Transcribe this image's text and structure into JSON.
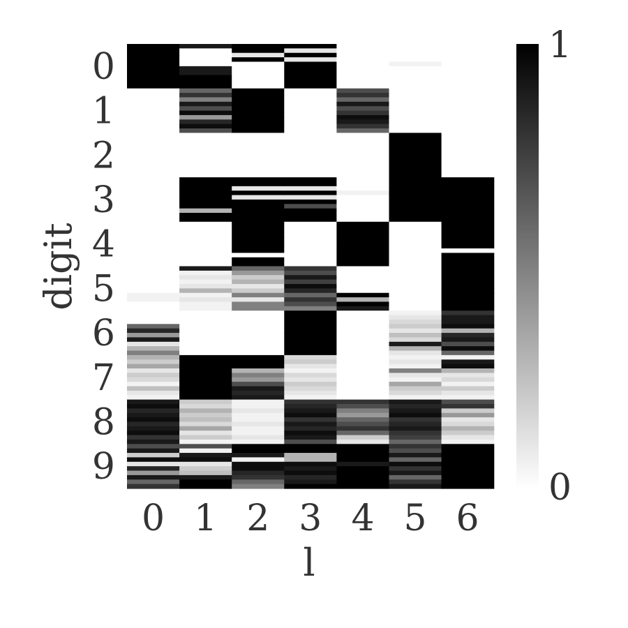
{
  "chart_data": {
    "type": "heatmap",
    "xlabel": "l",
    "ylabel": "digit",
    "x_categories": [
      "0",
      "1",
      "2",
      "3",
      "4",
      "5",
      "6"
    ],
    "y_categories": [
      "0",
      "1",
      "2",
      "3",
      "4",
      "5",
      "6",
      "7",
      "8",
      "9"
    ],
    "rows_per_digit": 10,
    "colormap": {
      "low": "#ffffff",
      "high": "#000000"
    },
    "value_range": [
      0,
      1
    ],
    "colorbar": {
      "tick_labels": [
        "1",
        "0"
      ],
      "ticks": [
        1,
        0
      ]
    },
    "grid": false,
    "values": [
      [
        1,
        1,
        1,
        1,
        1,
        1,
        1,
        1,
        1,
        1,
        0,
        0,
        0,
        0,
        0,
        0,
        0,
        0,
        0,
        0,
        0,
        0,
        0,
        0,
        0,
        0,
        0,
        0,
        0,
        0,
        0,
        0,
        0,
        0,
        0,
        0,
        0,
        0,
        0,
        0,
        0,
        0,
        0,
        0,
        0,
        0,
        0,
        0,
        0,
        0,
        0,
        0,
        0,
        0,
        0,
        0,
        0.05,
        0.05,
        0,
        0,
        0,
        0,
        0,
        0.6,
        0.85,
        0.4,
        0.9,
        0.1,
        0.3,
        0.5,
        0.3,
        0.2,
        0.35,
        0.1,
        0.2,
        0.15,
        0.05,
        0.25,
        0.1,
        0.05,
        0.9,
        0.95,
        0.85,
        0.9,
        0.95,
        0.85,
        0.9,
        0.95,
        0.8,
        0.9,
        0.7,
        0.9,
        0.2,
        0.95,
        0.1,
        0.85,
        0.4,
        0.9,
        0.6,
        0.8
      ],
      [
        0.9,
        0,
        0,
        0,
        0,
        0.9,
        0.9,
        1,
        1,
        1,
        0.6,
        0.8,
        0.5,
        0.9,
        0.7,
        0.95,
        0.4,
        0.85,
        0.95,
        0.7,
        0,
        0,
        0,
        0,
        0,
        0,
        0,
        0,
        0,
        0,
        1,
        1,
        1,
        1,
        1,
        1,
        1,
        0.3,
        1,
        1,
        0,
        0,
        0,
        0,
        0,
        0,
        0,
        0,
        0,
        0,
        0.9,
        0.05,
        0.1,
        0.05,
        0.1,
        0.3,
        0.05,
        0.1,
        0.05,
        0.05,
        0,
        0,
        0,
        0,
        0,
        0,
        0,
        0,
        0,
        0,
        1,
        1,
        1,
        1,
        1,
        1,
        1,
        1,
        1,
        1,
        0.2,
        0.15,
        0.3,
        0.2,
        0.25,
        0.15,
        0.35,
        0.1,
        0.2,
        0.05,
        0.7,
        0.05,
        0.9,
        0.95,
        0.1,
        0.2,
        0.25,
        0.9,
        1,
        1
      ],
      [
        1,
        1,
        0.1,
        1,
        0,
        0,
        0,
        0,
        0,
        0,
        1,
        1,
        1,
        1,
        1,
        1,
        1,
        1,
        1,
        1,
        0,
        0,
        0,
        0,
        0,
        0,
        0,
        0,
        0,
        0,
        1,
        1,
        0.1,
        1,
        0.1,
        1,
        1,
        1,
        1,
        1,
        1,
        1,
        1,
        1,
        1,
        1,
        1,
        0,
        1,
        1,
        0.6,
        0.4,
        0.2,
        0.3,
        0.1,
        0.2,
        0.5,
        0.1,
        0.5,
        0.5,
        0,
        0,
        0,
        0,
        0,
        0,
        0,
        0,
        0,
        0,
        1,
        1,
        1,
        0.3,
        0.5,
        0.4,
        0.7,
        0.9,
        0.85,
        0.9,
        0.05,
        0.05,
        0.1,
        0.05,
        0.05,
        0.1,
        0.05,
        0.05,
        0.1,
        0.05,
        1,
        1,
        0.9,
        0.05,
        0.95,
        0.95,
        0.85,
        0.8,
        0.6,
        0.5
      ],
      [
        1,
        0.1,
        1,
        0.1,
        1,
        1,
        1,
        1,
        1,
        1,
        0,
        0,
        0,
        0,
        0,
        0,
        0,
        0,
        0,
        0,
        0,
        0,
        0,
        0,
        0,
        0,
        0,
        0,
        0,
        0,
        1,
        1,
        0.1,
        1,
        0.1,
        1,
        0.7,
        1,
        1,
        1,
        0,
        0,
        0,
        0,
        0,
        0,
        0,
        0,
        0,
        0,
        0.8,
        0.7,
        0.9,
        0.75,
        0.95,
        0.85,
        0.6,
        0.8,
        0.7,
        0.5,
        1,
        1,
        1,
        1,
        1,
        1,
        1,
        1,
        1,
        1,
        0.15,
        0.2,
        0.1,
        0.05,
        0.15,
        0.1,
        0.2,
        0.15,
        0.1,
        0.05,
        0.8,
        0.85,
        0.9,
        0.95,
        0.8,
        0.9,
        0.85,
        0.95,
        0.9,
        0.7,
        1,
        1,
        0.3,
        0.3,
        0.95,
        0.9,
        0.95,
        0.85,
        0.9,
        1
      ],
      [
        0,
        0,
        0,
        0,
        0,
        0,
        0,
        0,
        0,
        0,
        0.7,
        0.8,
        0.6,
        0.9,
        0.7,
        0.8,
        0.95,
        0.9,
        0.8,
        0.6,
        0,
        0,
        0,
        0,
        0,
        0,
        0,
        0,
        0,
        0,
        0,
        0,
        0,
        0.05,
        0,
        0,
        0,
        0,
        0,
        0,
        1,
        1,
        1,
        1,
        1,
        1,
        1,
        1,
        1,
        1,
        0,
        0,
        0,
        0,
        0,
        0,
        1,
        0.3,
        1,
        0.9,
        0,
        0,
        0,
        0,
        0,
        0,
        0,
        0,
        0,
        0,
        0,
        0,
        0,
        0,
        0,
        0,
        0,
        0,
        0,
        0,
        0.8,
        0.7,
        0.5,
        0.4,
        0.6,
        0.7,
        0.8,
        0.6,
        0.2,
        0.1,
        1,
        1,
        1,
        1,
        0.9,
        1,
        1,
        1,
        1,
        1
      ],
      [
        0,
        0,
        0,
        0,
        0.05,
        0,
        0,
        0,
        0,
        0,
        0,
        0,
        0,
        0,
        0,
        0,
        0,
        0,
        0,
        0,
        1,
        1,
        1,
        1,
        1,
        1,
        1,
        1,
        1,
        1,
        1,
        1,
        1,
        1,
        1,
        1,
        1,
        1,
        1,
        1,
        0,
        0,
        0,
        0,
        0,
        0,
        0,
        0,
        0,
        0,
        0,
        0,
        0,
        0,
        0,
        0,
        0,
        0,
        0,
        0,
        0.05,
        0.1,
        0.15,
        0.2,
        0.1,
        0.25,
        0.15,
        0.9,
        0.3,
        0.1,
        0.05,
        0.1,
        0.05,
        0.5,
        0.1,
        0.05,
        0.35,
        0.2,
        0.15,
        0.05,
        0.9,
        0.85,
        0.9,
        0.95,
        0.8,
        0.85,
        0.9,
        0.8,
        0.75,
        0.6,
        0.8,
        0.7,
        0.9,
        0.6,
        0.95,
        0.8,
        0.9,
        0.6,
        0.8,
        0.9
      ],
      [
        0,
        0,
        0,
        0,
        0,
        0,
        0,
        0,
        0,
        0,
        0,
        0,
        0,
        0,
        0,
        0,
        0,
        0,
        0,
        0,
        0,
        0,
        0,
        0,
        0,
        0,
        0,
        0,
        0,
        0,
        1,
        1,
        1,
        1,
        1,
        1,
        1,
        1,
        1,
        1,
        1,
        1,
        1,
        1,
        1,
        1,
        0,
        1,
        1,
        1,
        1,
        1,
        1,
        1,
        1,
        1,
        1,
        1,
        1,
        1,
        0.8,
        0.9,
        0.9,
        0.95,
        0.3,
        0.85,
        0.9,
        0.7,
        0.95,
        0.6,
        0.05,
        0.9,
        0.95,
        0.3,
        0.1,
        0.15,
        0.05,
        0.2,
        0.1,
        0.05,
        0.7,
        0.8,
        0.2,
        0.4,
        0.1,
        0.15,
        0.3,
        0.2,
        0.1,
        0.05,
        1,
        1,
        1,
        1,
        1,
        1,
        1,
        1,
        1,
        1
      ]
    ]
  }
}
